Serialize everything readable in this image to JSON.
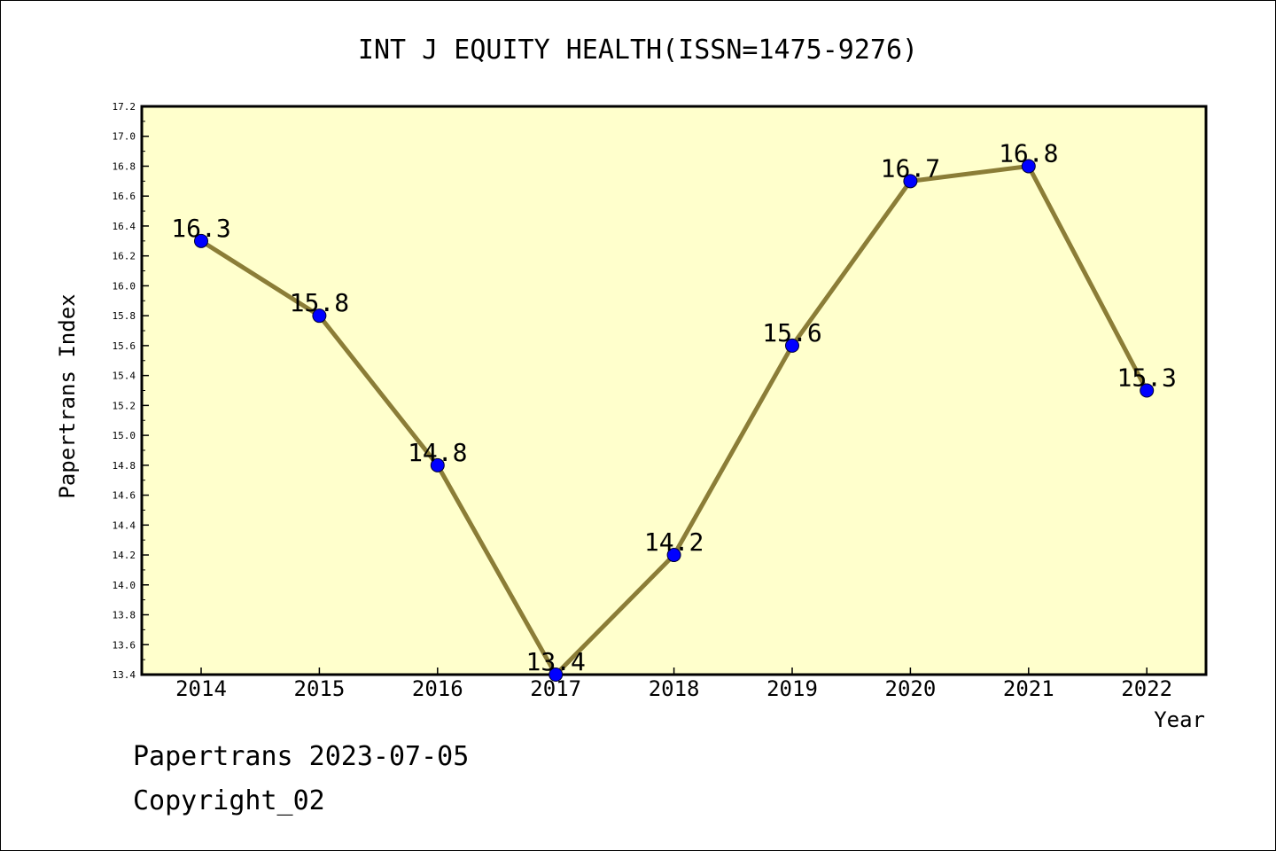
{
  "chart_data": {
    "type": "line",
    "title": "INT J EQUITY HEALTH(ISSN=1475-9276)",
    "xlabel": "Year",
    "ylabel": "Papertrans Index",
    "categories": [
      "2014",
      "2015",
      "2016",
      "2017",
      "2018",
      "2019",
      "2020",
      "2021",
      "2022"
    ],
    "series": [
      {
        "values": [
          16.3,
          15.8,
          14.8,
          13.4,
          14.2,
          15.6,
          16.7,
          16.8,
          15.3
        ],
        "labels": [
          "16.3",
          "15.8",
          "14.8",
          "13.4",
          "14.2",
          "15.6",
          "16.7",
          "16.8",
          "15.3"
        ]
      }
    ],
    "ylim": [
      13.4,
      17.2
    ],
    "yticks": [
      "13.4",
      "13.6",
      "13.8",
      "14.0",
      "14.2",
      "14.4",
      "14.6",
      "14.8",
      "15.0",
      "15.2",
      "15.4",
      "15.6",
      "15.8",
      "16.0",
      "16.2",
      "16.4",
      "16.6",
      "16.8",
      "17.0",
      "17.2"
    ],
    "grid": false,
    "colors": {
      "plot_background": "#ffffcc",
      "line": "#8b7d37",
      "marker": "#0000ff"
    }
  },
  "footer": {
    "date_line": "Papertrans 2023-07-05",
    "copyright_line": "Copyright_02"
  }
}
